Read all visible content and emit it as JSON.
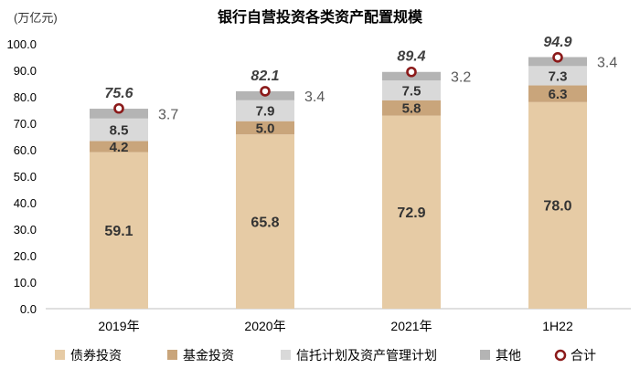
{
  "chart_data": {
    "type": "bar",
    "title": "银行自营投资各类资产配置规模",
    "unit_label": "(万亿元)",
    "categories": [
      "2019年",
      "2020年",
      "2021年",
      "1H22"
    ],
    "series": [
      {
        "name": "债券投资",
        "values": [
          59.1,
          65.8,
          72.9,
          78.0
        ],
        "color": "#E6CBA5",
        "label_color": "#333333"
      },
      {
        "name": "基金投资",
        "values": [
          4.2,
          5.0,
          5.8,
          6.3
        ],
        "color": "#C9A57B",
        "label_color": "#333333"
      },
      {
        "name": "信托计划及资产管理计划",
        "values": [
          8.5,
          7.9,
          7.5,
          7.3
        ],
        "color": "#D9D9D9",
        "label_color": "#333333"
      },
      {
        "name": "其他",
        "values": [
          3.7,
          3.4,
          3.2,
          3.4
        ],
        "color": "#B4B4B4",
        "label_color": "#595959"
      }
    ],
    "totals": {
      "name": "合计",
      "values": [
        75.6,
        82.1,
        89.4,
        94.9
      ],
      "marker_color": "#8B1A1A"
    },
    "value_labels": {
      "债券投资": [
        "59.1",
        "65.8",
        "72.9",
        "78.0"
      ],
      "基金投资": [
        "4.2",
        "5.0",
        "5.8",
        "6.3"
      ],
      "信托计划及资产管理计划": [
        "8.5",
        "7.9",
        "7.5",
        "7.3"
      ],
      "其他": [
        "3.7",
        "3.4",
        "3.2",
        "3.4"
      ],
      "合计": [
        "75.6",
        "82.1",
        "89.4",
        "94.9"
      ]
    },
    "ylim": [
      0,
      100
    ],
    "yticks": [
      "0.0",
      "10.0",
      "20.0",
      "30.0",
      "40.0",
      "50.0",
      "60.0",
      "70.0",
      "80.0",
      "90.0",
      "100.0"
    ],
    "grid": false,
    "legend": "bottom"
  }
}
